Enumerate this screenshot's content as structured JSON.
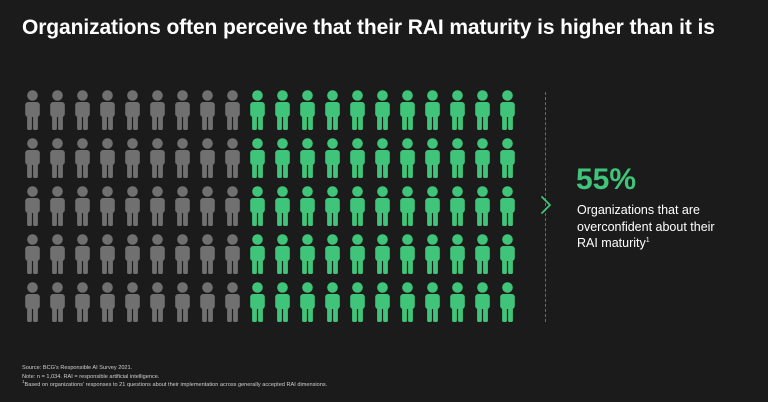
{
  "title": "Organizations often perceive that their RAI maturity is higher than it is",
  "stat": {
    "value": "55%",
    "label": "Organizations that are overconfident about their RAI maturity",
    "footnote_marker": "1"
  },
  "footnotes": {
    "source": "Source: BCG's Responsible AI Survey 2021.",
    "note": "Note: n = 1,034. RAI = responsible artificial intelligence.",
    "marker": "1",
    "detail": "Based on organizations' responses to 21 questions about their implementation across generally accepted RAI dimensions."
  },
  "colors": {
    "background": "#1b1b1b",
    "highlight": "#3fc47a",
    "muted": "#707070",
    "divider": "#6a6a6a"
  },
  "icons": {
    "person": "person-icon",
    "arrow": "chevron-right-icon"
  },
  "chart_data": {
    "type": "pictogram",
    "rows": 5,
    "columns": 20,
    "total": 100,
    "highlighted_count": 55,
    "highlight_direction": "right",
    "value_percent": 55
  }
}
